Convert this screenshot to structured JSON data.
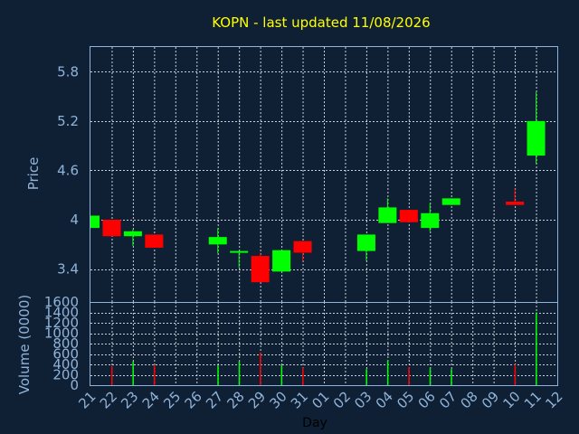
{
  "chart_data": {
    "type": "candlestick",
    "title": "KOPN - last updated 11/08/2026",
    "xlabel": "Day",
    "price_axis": {
      "label": "Price",
      "ylim": [
        3.0,
        6.1
      ],
      "ticks": [
        3.4,
        4,
        4.6,
        5.2,
        5.8
      ],
      "tick_labels": [
        "3.4",
        "4",
        "4.6",
        "5.2",
        "5.8"
      ]
    },
    "volume_axis": {
      "label": "Volume (0000)",
      "ylim": [
        0,
        1600
      ],
      "ticks": [
        0,
        200,
        400,
        600,
        800,
        1000,
        1200,
        1400,
        1600
      ],
      "tick_labels": [
        "0",
        "200",
        "400",
        "600",
        "800",
        "1000",
        "1200",
        "1400",
        "1600"
      ]
    },
    "x_tick_labels": [
      "21",
      "22",
      "23",
      "24",
      "25",
      "26",
      "27",
      "28",
      "29",
      "30",
      "31",
      "01",
      "02",
      "03",
      "04",
      "05",
      "06",
      "07",
      "08",
      "09",
      "10",
      "11",
      "12"
    ],
    "grid": true,
    "colors": {
      "up": "#00ff00",
      "down": "#ff0000",
      "title": "#ffff00",
      "axis_text": "#8fb3d9",
      "grid": "#c8d0d8",
      "background": "#0f2035"
    },
    "candles": [
      {
        "day": "21",
        "open": 3.9,
        "close": 4.05,
        "high": 4.05,
        "low": 3.9,
        "volume": 0
      },
      {
        "day": "22",
        "open": 4.0,
        "close": 3.8,
        "high": 4.0,
        "low": 3.8,
        "volume": 370
      },
      {
        "day": "23",
        "open": 3.8,
        "close": 3.86,
        "high": 3.88,
        "low": 3.68,
        "volume": 460
      },
      {
        "day": "24",
        "open": 3.82,
        "close": 3.66,
        "high": 3.82,
        "low": 3.66,
        "volume": 390
      },
      {
        "day": "27",
        "open": 3.7,
        "close": 3.79,
        "high": 3.9,
        "low": 3.59,
        "volume": 380
      },
      {
        "day": "28",
        "open": 3.6,
        "close": 3.62,
        "high": 3.62,
        "low": 3.42,
        "volume": 460
      },
      {
        "day": "29",
        "open": 3.56,
        "close": 3.24,
        "high": 3.6,
        "low": 3.24,
        "volume": 630
      },
      {
        "day": "30",
        "open": 3.37,
        "close": 3.63,
        "high": 3.63,
        "low": 3.37,
        "volume": 390
      },
      {
        "day": "31",
        "open": 3.74,
        "close": 3.6,
        "high": 3.74,
        "low": 3.5,
        "volume": 340
      },
      {
        "day": "03",
        "open": 3.62,
        "close": 3.82,
        "high": 3.82,
        "low": 3.5,
        "volume": 310
      },
      {
        "day": "04",
        "open": 3.96,
        "close": 4.15,
        "high": 4.26,
        "low": 3.96,
        "volume": 480
      },
      {
        "day": "05",
        "open": 4.12,
        "close": 3.97,
        "high": 4.12,
        "low": 3.97,
        "volume": 350
      },
      {
        "day": "06",
        "open": 3.9,
        "close": 4.08,
        "high": 4.2,
        "low": 3.86,
        "volume": 330
      },
      {
        "day": "07",
        "open": 4.18,
        "close": 4.26,
        "high": 4.26,
        "low": 4.18,
        "volume": 310
      },
      {
        "day": "10",
        "open": 4.22,
        "close": 4.18,
        "high": 4.38,
        "low": 4.18,
        "volume": 400
      },
      {
        "day": "11",
        "open": 4.78,
        "close": 5.2,
        "high": 5.55,
        "low": 4.68,
        "volume": 1400
      }
    ]
  }
}
